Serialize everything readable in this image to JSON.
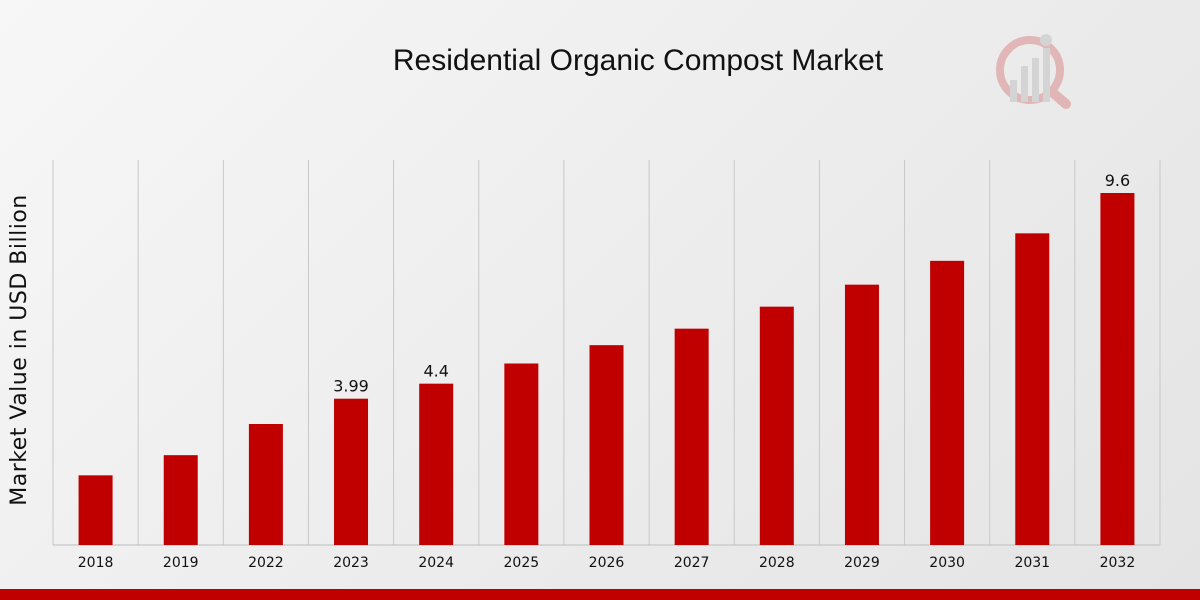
{
  "chart_data": {
    "type": "bar",
    "title": "Residential Organic Compost Market",
    "xlabel": "",
    "ylabel": "Market Value in USD Billion",
    "categories": [
      "2018",
      "2019",
      "2022",
      "2023",
      "2024",
      "2025",
      "2026",
      "2027",
      "2028",
      "2029",
      "2030",
      "2031",
      "2032"
    ],
    "values": [
      1.9,
      2.45,
      3.3,
      3.99,
      4.4,
      4.95,
      5.45,
      5.9,
      6.5,
      7.1,
      7.75,
      8.5,
      9.6
    ],
    "data_labels": [
      {
        "category": "2023",
        "text": "3.99"
      },
      {
        "category": "2024",
        "text": "4.4"
      },
      {
        "category": "2032",
        "text": "9.6"
      }
    ],
    "ylim": [
      0,
      10.5
    ],
    "grid": "vertical",
    "bar_color": "#c00000",
    "grid_color": "#c8c8c8"
  },
  "logo": {
    "name": "logo-icon",
    "color": "#c00000"
  }
}
